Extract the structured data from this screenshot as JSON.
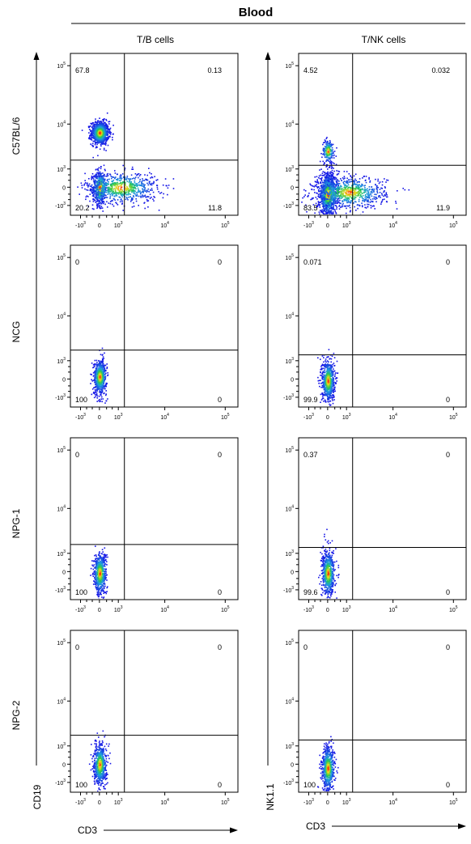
{
  "title": "Blood",
  "columns": [
    "T/B cells",
    "T/NK cells"
  ],
  "rows": [
    "C57BL/6",
    "NCG",
    "NPG-1",
    "NPG-2"
  ],
  "axes": {
    "x_label": "CD3",
    "y_labels": [
      "CD19",
      "NK1.1"
    ],
    "x_ticks": [
      {
        "base": "-10",
        "exp": "3",
        "value": -1000
      },
      {
        "base": "0",
        "exp": "",
        "value": 0
      },
      {
        "base": "10",
        "exp": "3",
        "value": 1000
      },
      {
        "base": "10",
        "exp": "4",
        "value": 10000
      },
      {
        "base": "10",
        "exp": "5",
        "value": 100000
      }
    ],
    "y_ticks": [
      {
        "base": "-10",
        "exp": "3",
        "value": -1000
      },
      {
        "base": "0",
        "exp": "",
        "value": 0
      },
      {
        "base": "10",
        "exp": "3",
        "value": 1000
      },
      {
        "base": "10",
        "exp": "4",
        "value": 10000
      },
      {
        "base": "10",
        "exp": "5",
        "value": 100000
      }
    ],
    "scale": "biexponential"
  },
  "colors": {
    "density_low": "#1a1aff",
    "density_mid": "#22cc55",
    "density_high": "#ff2200",
    "lines": "#000000"
  },
  "chart_data": {
    "type": "scatter",
    "subtype": "flow-cytometry-density-plot",
    "panels": [
      {
        "row": "C57BL/6",
        "column": "T/B cells",
        "gate": [
          1500,
          1800
        ],
        "quadrants": {
          "top_left": "67.8",
          "top_right": "0.13",
          "bottom_left": "20.2",
          "bottom_right": "11.8"
        },
        "populations": [
          {
            "x": 0,
            "y": 7000,
            "spread_x": 0.22,
            "spread_y": 0.3,
            "n": 900
          },
          {
            "x": 0,
            "y": 0,
            "spread_x": 0.18,
            "spread_y": 0.45,
            "n": 450
          },
          {
            "x": 1200,
            "y": 0,
            "spread_x": 0.9,
            "spread_y": 0.4,
            "n": 700
          }
        ]
      },
      {
        "row": "C57BL/6",
        "column": "T/NK cells",
        "gate": [
          1500,
          1300
        ],
        "quadrants": {
          "top_left": "4.52",
          "top_right": "0.032",
          "bottom_left": "83.5",
          "bottom_right": "11.9"
        },
        "populations": [
          {
            "x": 0,
            "y": 3000,
            "spread_x": 0.15,
            "spread_y": 0.3,
            "n": 200
          },
          {
            "x": 0,
            "y": -300,
            "spread_x": 0.22,
            "spread_y": 0.55,
            "n": 1100
          },
          {
            "x": 1200,
            "y": -200,
            "spread_x": 0.9,
            "spread_y": 0.4,
            "n": 750
          }
        ]
      },
      {
        "row": "NCG",
        "column": "T/B cells",
        "gate": [
          1500,
          2000
        ],
        "quadrants": {
          "top_left": "0",
          "top_right": "0",
          "bottom_left": "100",
          "bottom_right": "0"
        },
        "populations": [
          {
            "x": 0,
            "y": 100,
            "spread_x": 0.16,
            "spread_y": 0.45,
            "n": 600
          }
        ]
      },
      {
        "row": "NCG",
        "column": "T/NK cells",
        "gate": [
          1500,
          1500
        ],
        "quadrants": {
          "top_left": "0.071",
          "top_right": "0",
          "bottom_left": "99.9",
          "bottom_right": "0"
        },
        "populations": [
          {
            "x": 0,
            "y": -50,
            "spread_x": 0.16,
            "spread_y": 0.55,
            "n": 650
          }
        ]
      },
      {
        "row": "NPG-1",
        "column": "T/B cells",
        "gate": [
          1500,
          1800
        ],
        "quadrants": {
          "top_left": "0",
          "top_right": "0",
          "bottom_left": "100",
          "bottom_right": "0"
        },
        "populations": [
          {
            "x": 0,
            "y": -50,
            "spread_x": 0.16,
            "spread_y": 0.55,
            "n": 600
          }
        ]
      },
      {
        "row": "NPG-1",
        "column": "T/NK cells",
        "gate": [
          1500,
          1500
        ],
        "quadrants": {
          "top_left": "0.37",
          "top_right": "0",
          "bottom_left": "99.6",
          "bottom_right": "0"
        },
        "populations": [
          {
            "x": 0,
            "y": -50,
            "spread_x": 0.16,
            "spread_y": 0.6,
            "n": 650
          }
        ]
      },
      {
        "row": "NPG-2",
        "column": "T/B cells",
        "gate": [
          1500,
          2000
        ],
        "quadrants": {
          "top_left": "0",
          "top_right": "0",
          "bottom_left": "100",
          "bottom_right": "0"
        },
        "populations": [
          {
            "x": 0,
            "y": 0,
            "spread_x": 0.16,
            "spread_y": 0.55,
            "n": 600
          }
        ]
      },
      {
        "row": "NPG-2",
        "column": "T/NK cells",
        "gate": [
          1500,
          1500
        ],
        "quadrants": {
          "top_left": "0",
          "top_right": "0",
          "bottom_left": "100",
          "bottom_right": "0"
        },
        "populations": [
          {
            "x": 0,
            "y": -150,
            "spread_x": 0.16,
            "spread_y": 0.6,
            "n": 650
          }
        ]
      }
    ]
  }
}
